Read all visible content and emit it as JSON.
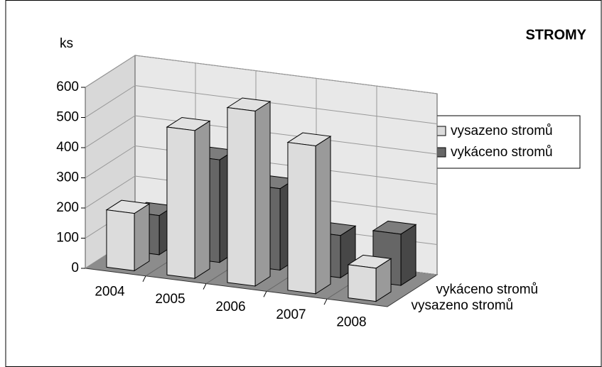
{
  "chart_data": {
    "type": "bar3d",
    "title": "STROMY",
    "y_label": "ks",
    "categories": [
      "2004",
      "2005",
      "2006",
      "2007",
      "2008"
    ],
    "series": [
      {
        "name": "vysazeno stromů",
        "color": "#dcdcdc",
        "values": [
          190,
          490,
          580,
          490,
          110
        ]
      },
      {
        "name": "vykáceno stromů",
        "color": "#666666",
        "values": [
          130,
          340,
          270,
          140,
          170
        ]
      }
    ],
    "ylim": [
      0,
      600
    ],
    "yticks": [
      0,
      100,
      200,
      300,
      400,
      500,
      600
    ],
    "grid": true,
    "legend": "right"
  }
}
